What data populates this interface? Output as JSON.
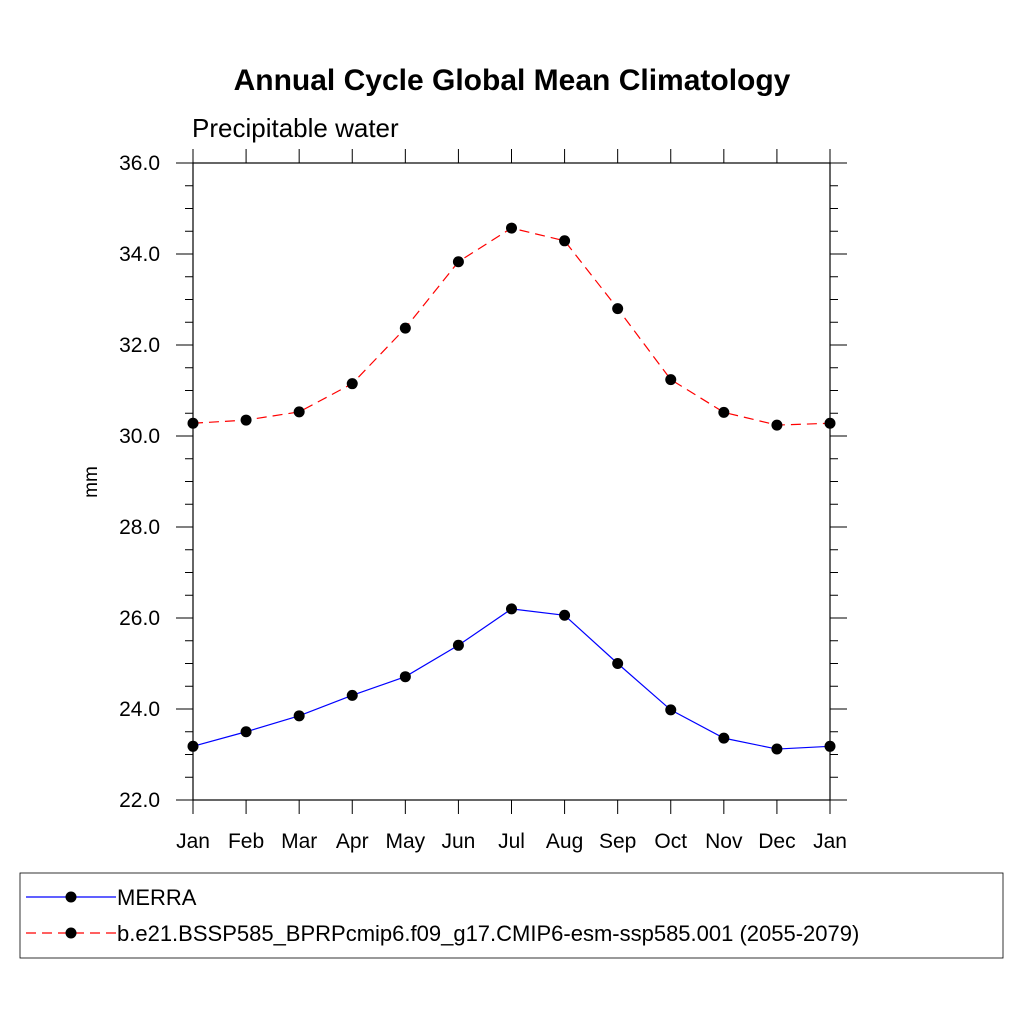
{
  "chart_data": {
    "type": "line",
    "title": "Annual Cycle Global Mean Climatology",
    "subtitle": "Precipitable water",
    "xlabel": "",
    "ylabel": "mm",
    "categories": [
      "Jan",
      "Feb",
      "Mar",
      "Apr",
      "May",
      "Jun",
      "Jul",
      "Aug",
      "Sep",
      "Oct",
      "Nov",
      "Dec",
      "Jan"
    ],
    "ylim": [
      22.0,
      36.0
    ],
    "yticks": [
      "22.0",
      "24.0",
      "26.0",
      "28.0",
      "30.0",
      "32.0",
      "34.0",
      "36.0"
    ],
    "grid": false,
    "legend_position": "bottom",
    "series": [
      {
        "name": "MERRA",
        "color": "#0000ff",
        "dash": "solid",
        "values": [
          23.18,
          23.5,
          23.85,
          24.3,
          24.71,
          25.4,
          26.2,
          26.06,
          25.0,
          23.98,
          23.36,
          23.12,
          23.18
        ]
      },
      {
        "name": "b.e21.BSSP585_BPRPcmip6.f09_g17.CMIP6-esm-ssp585.001 (2055-2079)",
        "color": "#ff0000",
        "dash": "dashed",
        "values": [
          30.28,
          30.35,
          30.53,
          31.15,
          32.37,
          33.83,
          34.57,
          34.29,
          32.8,
          31.24,
          30.52,
          30.24,
          30.28
        ]
      }
    ]
  }
}
